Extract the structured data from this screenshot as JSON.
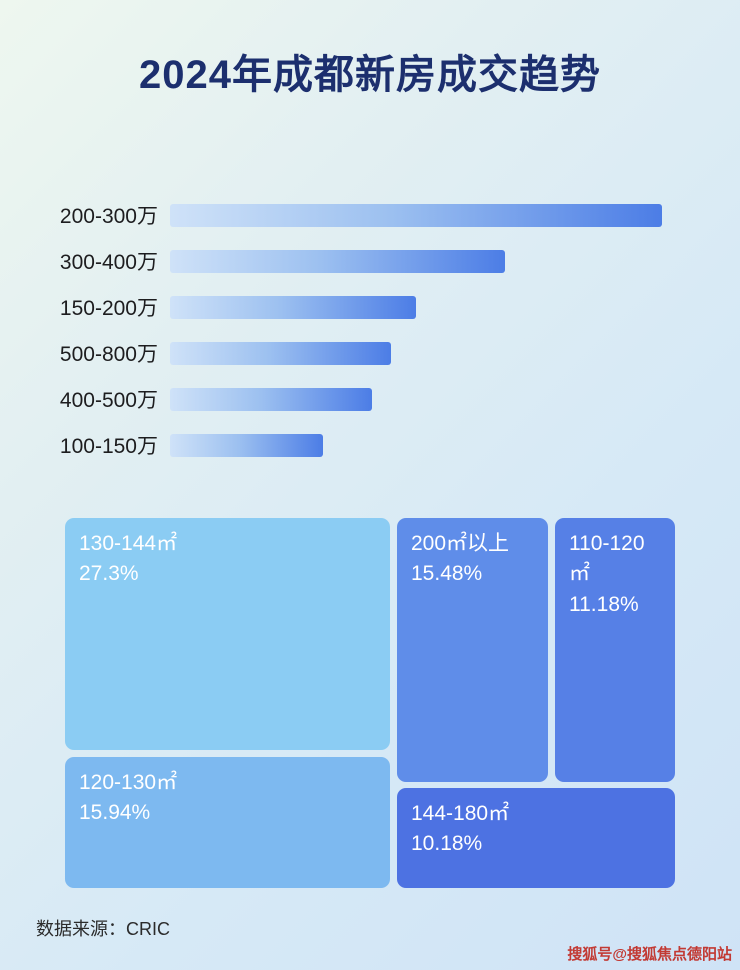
{
  "title": "2024年成都新房成交趋势",
  "colors": {
    "title_text": "#1c2f6e",
    "bar_gradient_start": "#cfe2f8",
    "bar_gradient_end": "#4c7de6",
    "treemap_130_144": "#8bccf3",
    "treemap_120_130": "#7db9f0",
    "treemap_200_up": "#5f8de9",
    "treemap_110_120": "#5680e6",
    "treemap_144_180": "#4d72e2",
    "watermark_text": "#c23a34"
  },
  "chart_data": [
    {
      "type": "bar",
      "orientation": "horizontal",
      "title": "2024年成都新房成交趋势（价格段）",
      "categories": [
        "200-300万",
        "300-400万",
        "150-200万",
        "500-800万",
        "400-500万",
        "100-150万"
      ],
      "values": [
        100,
        68,
        50,
        45,
        41,
        31
      ],
      "value_note": "relative bar lengths (% of longest bar); no numeric axis shown",
      "grid": false,
      "legend": false
    },
    {
      "type": "treemap",
      "title": "2024年成都新房成交趋势（面积段占比）",
      "items": [
        {
          "label": "130-144㎡",
          "value": 27.3,
          "display": "27.3%"
        },
        {
          "label": "200㎡以上",
          "value": 15.48,
          "display": "15.48%"
        },
        {
          "label": "110-120㎡",
          "value": 11.18,
          "display": "11.18%"
        },
        {
          "label": "120-130㎡",
          "value": 15.94,
          "display": "15.94%"
        },
        {
          "label": "144-180㎡",
          "value": 10.18,
          "display": "10.18%"
        }
      ]
    }
  ],
  "footer": {
    "source": "数据来源：CRIC"
  },
  "watermark": "搜狐号@搜狐焦点德阳站"
}
